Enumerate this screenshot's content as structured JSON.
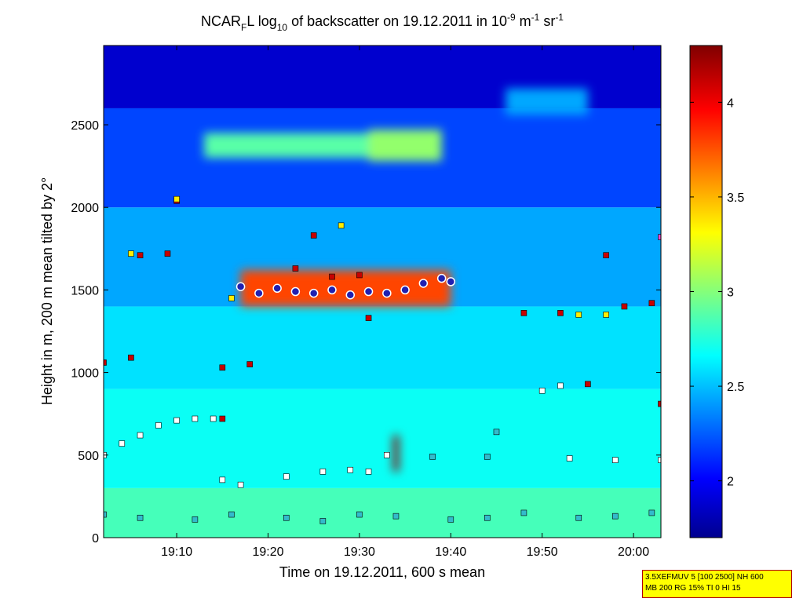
{
  "chart_data": {
    "type": "heatmap",
    "title_parts": {
      "a": "NCAR",
      "a_sub": "F",
      "b": "L log",
      "b_sub": "10",
      "c": " of backscatter on 19.12.2011 in 10",
      "c_sup": "-9",
      "d": " m",
      "d_sup": "-1",
      "e": " sr",
      "e_sup": "-1"
    },
    "xlabel": "Time on 19.12.2011, 600 s mean",
    "ylabel": "Height in m, 200 m mean tilted by 2°",
    "x_ticks": [
      "19:10",
      "19:20",
      "19:30",
      "19:40",
      "19:50",
      "20:00"
    ],
    "y_ticks": [
      "0",
      "500",
      "1000",
      "1500",
      "2000",
      "2500"
    ],
    "xlim": [
      "19:02",
      "20:03"
    ],
    "ylim": [
      0,
      2980
    ],
    "colorbar": {
      "ticks": [
        "2",
        "2.5",
        "3",
        "3.5",
        "4"
      ],
      "range": [
        1.7,
        4.3
      ],
      "colormap": "jet"
    },
    "background_levels": [
      {
        "height_range": [
          0,
          300
        ],
        "value": 2.85
      },
      {
        "height_range": [
          300,
          900
        ],
        "value": 2.7
      },
      {
        "height_range": [
          900,
          1400
        ],
        "value": 2.6
      },
      {
        "height_range": [
          1400,
          2000
        ],
        "value": 2.45
      },
      {
        "height_range": [
          2000,
          2600
        ],
        "value": 2.2
      },
      {
        "height_range": [
          2600,
          2980
        ],
        "value": 1.9
      }
    ],
    "features": [
      {
        "name": "aerosol layer",
        "x_range": [
          "19:17",
          "19:40"
        ],
        "height_range": [
          1400,
          1620
        ],
        "value": 3.8
      },
      {
        "name": "upper layer",
        "x_range": [
          "19:13",
          "19:31"
        ],
        "height_range": [
          2300,
          2450
        ],
        "value": 2.9
      },
      {
        "name": "upper layer right",
        "x_range": [
          "19:31",
          "19:39"
        ],
        "height_range": [
          2280,
          2470
        ],
        "value": 3.05
      },
      {
        "name": "high patch",
        "x_range": [
          "19:46",
          "19:55"
        ],
        "height_range": [
          2560,
          2720
        ],
        "value": 2.45
      },
      {
        "name": "spike",
        "x_range": [
          "19:33.7",
          "19:34.3"
        ],
        "height_range": [
          400,
          620
        ],
        "value": 4.25
      }
    ],
    "marker_series": [
      {
        "color": "#ffffff",
        "points": [
          [
            "19:02",
            500
          ],
          [
            "19:04",
            570
          ],
          [
            "19:06",
            620
          ],
          [
            "19:08",
            680
          ],
          [
            "19:10",
            710
          ],
          [
            "19:12",
            720
          ],
          [
            "19:14",
            720
          ],
          [
            "19:33",
            500
          ],
          [
            "19:15",
            350
          ],
          [
            "19:17",
            320
          ],
          [
            "19:22",
            370
          ],
          [
            "19:26",
            400
          ],
          [
            "19:29",
            410
          ],
          [
            "19:31",
            400
          ],
          [
            "19:50",
            890
          ],
          [
            "19:52",
            920
          ],
          [
            "19:53",
            480
          ],
          [
            "19:58",
            470
          ],
          [
            "20:03",
            470
          ]
        ]
      },
      {
        "color": "#c80000",
        "points": [
          [
            "19:02",
            1060
          ],
          [
            "19:05",
            1090
          ],
          [
            "19:15",
            720
          ],
          [
            "19:18",
            1050
          ],
          [
            "19:15",
            1030
          ],
          [
            "19:06",
            1710
          ],
          [
            "19:09",
            1720
          ],
          [
            "19:10",
            2040
          ],
          [
            "19:25",
            1830
          ],
          [
            "19:23",
            1630
          ],
          [
            "19:27",
            1580
          ],
          [
            "19:30",
            1590
          ],
          [
            "19:31",
            1330
          ],
          [
            "19:48",
            1360
          ],
          [
            "19:52",
            1360
          ],
          [
            "19:57",
            1710
          ],
          [
            "19:59",
            1400
          ],
          [
            "20:02",
            1420
          ],
          [
            "19:55",
            930
          ],
          [
            "20:03",
            810
          ]
        ]
      },
      {
        "color": "#ffee00",
        "points": [
          [
            "19:05",
            1720
          ],
          [
            "19:10",
            2050
          ],
          [
            "19:28",
            1890
          ],
          [
            "19:16",
            1450
          ],
          [
            "19:54",
            1350
          ],
          [
            "19:57",
            1350
          ]
        ]
      },
      {
        "color": "#33bbcc",
        "points": [
          [
            "19:02",
            140
          ],
          [
            "19:06",
            120
          ],
          [
            "19:12",
            110
          ],
          [
            "19:16",
            140
          ],
          [
            "19:22",
            120
          ],
          [
            "19:26",
            100
          ],
          [
            "19:30",
            140
          ],
          [
            "19:34",
            130
          ],
          [
            "19:40",
            110
          ],
          [
            "19:44",
            120
          ],
          [
            "19:48",
            150
          ],
          [
            "19:54",
            120
          ],
          [
            "19:58",
            130
          ],
          [
            "20:02",
            150
          ],
          [
            "19:38",
            490
          ],
          [
            "19:44",
            490
          ],
          [
            "19:45",
            640
          ]
        ]
      },
      {
        "color": "#ee44cc",
        "points": [
          [
            "20:03",
            1820
          ]
        ]
      }
    ],
    "ring_series": [
      {
        "color": "#2020b0",
        "x": [
          "19:17",
          "19:19",
          "19:21",
          "19:23",
          "19:25",
          "19:27",
          "19:29",
          "19:31",
          "19:33",
          "19:35",
          "19:37",
          "19:39",
          "19:40"
        ],
        "y": [
          1520,
          1480,
          1510,
          1490,
          1480,
          1500,
          1470,
          1490,
          1480,
          1500,
          1540,
          1570,
          1550
        ]
      }
    ]
  },
  "info_box": {
    "line1": "3.5XEFMUV 5 [100 2500] NH 600",
    "line2": "MB 200 RG 15% TI 0 HI 15"
  }
}
